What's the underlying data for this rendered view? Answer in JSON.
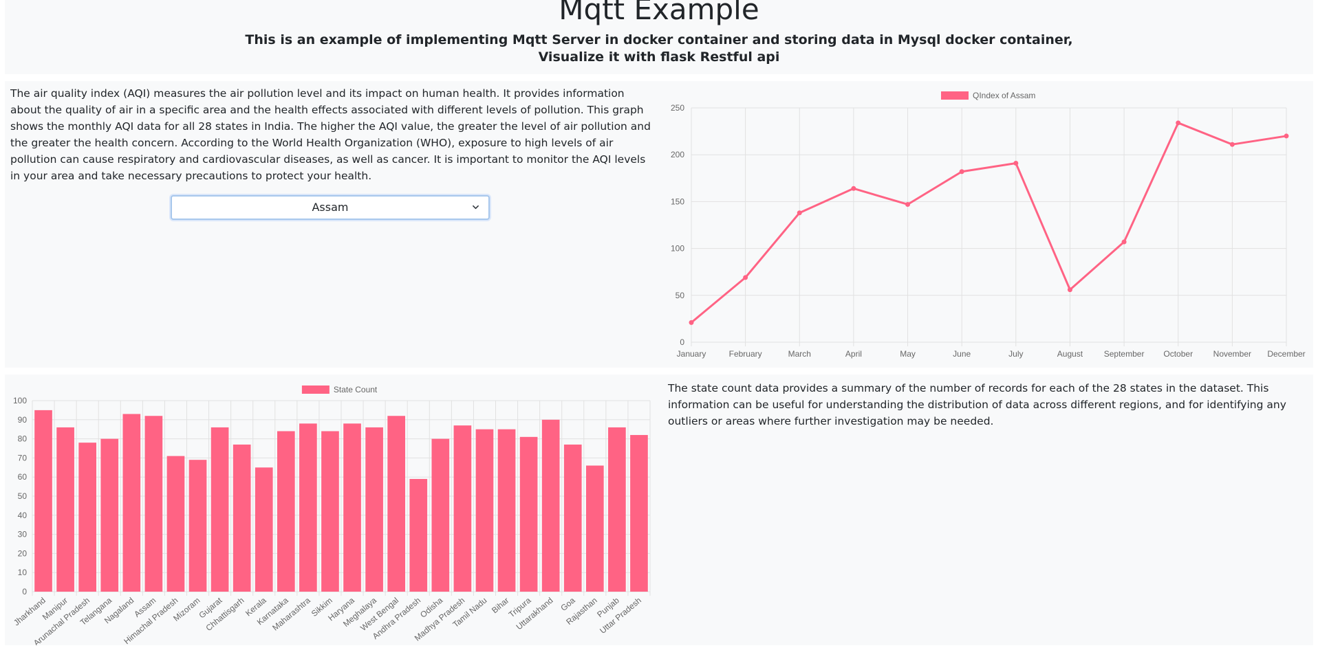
{
  "header": {
    "title": "Mqtt Example",
    "subtitle_line1": "This is an example of implementing Mqtt Server in docker container and storing data in Mysql docker container,",
    "subtitle_line2": "Visualize it with flask Restful api"
  },
  "aqi_section": {
    "description": "The air quality index (AQI) measures the air pollution level and its impact on human health. It provides information about the quality of air in a specific area and the health effects associated with different levels of pollution. This graph shows the monthly AQI data for all 28 states in India. The higher the AQI value, the greater the level of air pollution and the greater the health concern. According to the World Health Organization (WHO), exposure to high levels of air pollution can cause respiratory and cardiovascular diseases, as well as cancer. It is important to monitor the AQI levels in your area and take necessary precautions to protect your health.",
    "state_select": {
      "selected": "Assam",
      "icon": "chevron-down-icon"
    }
  },
  "state_count_section": {
    "description": "The state count data provides a summary of the number of records for each of the 28 states in the dataset. This information can be useful for understanding the distribution of data across different regions, and for identifying any outliers or areas where further investigation may be needed."
  },
  "chart_data": [
    {
      "type": "line",
      "legend": "QIndex of Assam",
      "legend_position": "top",
      "color": "#ff6384",
      "grid": true,
      "categories": [
        "January",
        "February",
        "March",
        "April",
        "May",
        "June",
        "July",
        "August",
        "September",
        "October",
        "November",
        "December"
      ],
      "values": [
        21,
        69,
        138,
        164,
        147,
        182,
        191,
        56,
        107,
        234,
        211,
        220
      ],
      "ylim": [
        0,
        250
      ],
      "yticks": [
        0,
        50,
        100,
        150,
        200,
        250
      ]
    },
    {
      "type": "bar",
      "legend": "State Count",
      "legend_position": "top",
      "color": "#ff6384",
      "grid": true,
      "categories": [
        "Jharkhand",
        "Manipur",
        "Arunachal Pradesh",
        "Telangana",
        "Nagaland",
        "Assam",
        "Himachal Pradesh",
        "Mizoram",
        "Gujarat",
        "Chhattisgarh",
        "Kerala",
        "Karnataka",
        "Maharashtra",
        "Sikkim",
        "Haryana",
        "Meghalaya",
        "West Bengal",
        "Andhra Pradesh",
        "Odisha",
        "Madhya Pradesh",
        "Tamil Nadu",
        "Bihar",
        "Tripura",
        "Uttarakhand",
        "Goa",
        "Rajasthan",
        "Punjab",
        "Uttar Pradesh"
      ],
      "values": [
        95,
        86,
        78,
        80,
        93,
        92,
        71,
        69,
        86,
        77,
        65,
        84,
        88,
        84,
        88,
        86,
        92,
        59,
        80,
        87,
        85,
        85,
        81,
        90,
        77,
        66,
        86,
        82
      ],
      "ylim": [
        0,
        100
      ],
      "yticks": [
        0,
        10,
        20,
        30,
        40,
        50,
        60,
        70,
        80,
        90,
        100
      ]
    }
  ]
}
